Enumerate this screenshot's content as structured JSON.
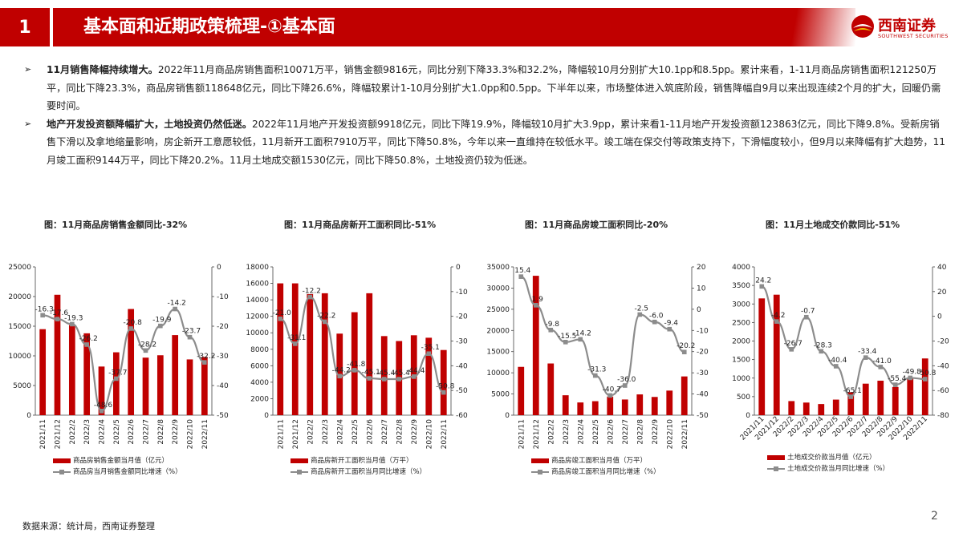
{
  "header": {
    "number": "1",
    "title": "基本面和近期政策梳理-①基本面",
    "logo_cn": "西南证券",
    "logo_en": "SOUTHWEST SECURITIES"
  },
  "bullets": [
    {
      "mark": "➢",
      "lead": "11月销售降幅持续增大。",
      "text": "2022年11月商品房销售面积10071万平，销售金额9816元，同比分别下降33.3%和32.2%，降幅较10月分别扩大10.1pp和8.5pp。累计来看，1-11月商品房销售面积121250万平，同比下降23.3%，商品房销售额118648亿元，同比下降26.6%，降幅较累计1-10月分别扩大1.0pp和0.5pp。下半年以来，市场整体进入筑底阶段，销售降幅自9月以来出现连续2个月的扩大，回暖仍需要时间。"
    },
    {
      "mark": "➢",
      "lead": "地产开发投资额降幅扩大，土地投资仍然低迷。",
      "text": "2022年11月地产开发投资额9918亿元，同比下降19.9%，降幅较10月扩大3.9pp，累计来看1-11月地产开发投资额123863亿元，同比下降9.8%。受新房销售下滑以及拿地缩量影响，房企新开工意愿较低，11月新开工面积7910万平，同比下降50.8%，今年以来一直维持在较低水平。竣工端在保交付等政策支持下，下滑幅度较小，但9月以来降幅有扩大趋势，11月竣工面积9144万平，同比下降20.2%。11月土地成交额1530亿元，同比下降50.8%，土地投资仍较为低迷。"
    }
  ],
  "categories": [
    "2021/11",
    "2021/12",
    "2022/2",
    "2022/3",
    "2022/4",
    "2022/5",
    "2022/6",
    "2022/7",
    "2022/8",
    "2022/9",
    "2022/10",
    "2022/11"
  ],
  "chart_data": [
    {
      "type": "bar",
      "title": "图：11月商品房销售金额同比-32%",
      "bar_color": "#c00000",
      "line_color": "#8c8c8c",
      "left_axis": [
        0,
        25000
      ],
      "left_ticks": [
        "0",
        "5000",
        "10000",
        "15000",
        "20000",
        "25000"
      ],
      "right_axis": [
        -50,
        0
      ],
      "right_ticks": [
        "0",
        "-10",
        "-20",
        "-30",
        "-40",
        "-50"
      ],
      "bars": {
        "name": "商品房销售金额当月值（亿元）",
        "values": [
          14500,
          20300,
          15200,
          13800,
          8200,
          10600,
          17900,
          9700,
          10100,
          13500,
          9400,
          9816
        ]
      },
      "line": {
        "name": "商品房当月销售金额同比增速（%）",
        "values": [
          -16.3,
          -17.6,
          -19.3,
          -26.2,
          -48.6,
          -37.7,
          -20.8,
          -28.2,
          -19.9,
          -14.2,
          -23.7,
          -32.2
        ]
      },
      "labels": [
        "-16.3",
        "-17.6",
        "-19.3",
        "-26.2",
        "-48.6",
        "-37.7",
        "-20.8",
        "-28.2",
        "-19.9",
        "-14.2",
        "-23.7",
        "-32.2"
      ]
    },
    {
      "type": "bar",
      "title": "图：11月商品房新开工面积同比-51%",
      "bar_color": "#c00000",
      "line_color": "#8c8c8c",
      "left_axis": [
        0,
        18000
      ],
      "left_ticks": [
        "0",
        "2000",
        "4000",
        "6000",
        "8000",
        "10000",
        "12000",
        "14000",
        "16000",
        "18000"
      ],
      "right_axis": [
        -60,
        0
      ],
      "right_ticks": [
        "0",
        "-10",
        "-20",
        "-30",
        "-40",
        "-50",
        "-60"
      ],
      "bars": {
        "name": "商品房新开工面积当月值（万平）",
        "values": [
          16000,
          16000,
          14700,
          14800,
          9900,
          12500,
          14800,
          9600,
          9000,
          9700,
          9400,
          7910
        ]
      },
      "line": {
        "name": "商品房新开工面积当月同比增速（%）",
        "values": [
          -21.0,
          -31.1,
          -12.2,
          -22.2,
          -44.2,
          -41.8,
          -45.1,
          -45.4,
          -45.4,
          -44.4,
          -35.1,
          -50.8
        ]
      },
      "labels": [
        "-21.0",
        "-31.1",
        "-12.2",
        "-22.2",
        "-44.2",
        "-41.8",
        "-45.1",
        "-45.4",
        "-45.4",
        "-44.4",
        "-35.1",
        "-50.8"
      ]
    },
    {
      "type": "bar",
      "title": "图：11月商品房竣工面积同比-20%",
      "bar_color": "#c00000",
      "line_color": "#8c8c8c",
      "left_axis": [
        0,
        35000
      ],
      "left_ticks": [
        "0",
        "5000",
        "10000",
        "15000",
        "20000",
        "25000",
        "30000",
        "35000"
      ],
      "right_axis": [
        -50,
        20
      ],
      "right_ticks": [
        "20",
        "10",
        "0",
        "-10",
        "-20",
        "-30",
        "-40",
        "-50"
      ],
      "bars": {
        "name": "商品房竣工面积当月值（万平）",
        "values": [
          11400,
          32900,
          12200,
          4700,
          3000,
          3300,
          4400,
          3700,
          4900,
          4300,
          5800,
          9144
        ]
      },
      "line": {
        "name": "商品房竣工面积当月同比增速（%）",
        "values": [
          15.4,
          1.9,
          -9.8,
          -15.5,
          -14.2,
          -31.3,
          -40.7,
          -36.0,
          -2.5,
          -6.0,
          -9.4,
          -20.2
        ]
      },
      "labels": [
        "15.4",
        "1.9",
        "-9.8",
        "-15.5",
        "-14.2",
        "-31.3",
        "-40.7",
        "-36.0",
        "-2.5",
        "-6.0",
        "-9.4",
        "-20.2"
      ]
    },
    {
      "type": "bar",
      "title": "图：11月土地成交价款同比-51%",
      "bar_color": "#c00000",
      "line_color": "#8c8c8c",
      "left_axis": [
        0,
        4000
      ],
      "left_ticks": [
        "0",
        "500",
        "1000",
        "1500",
        "2000",
        "2500",
        "3000",
        "3500",
        "4000"
      ],
      "right_axis": [
        -80,
        40
      ],
      "right_ticks": [
        "40",
        "20",
        "0",
        "-20",
        "-40",
        "-60",
        "-80"
      ],
      "bars": {
        "name": "土地成交价款当月值（亿元）",
        "values": [
          3150,
          3250,
          380,
          340,
          300,
          420,
          620,
          850,
          930,
          760,
          1000,
          1530
        ]
      },
      "line": {
        "name": "土地成交价款当月同比增速（%）",
        "values": [
          24.2,
          -4.2,
          -26.7,
          -0.7,
          -28.3,
          -40.4,
          -65.1,
          -33.4,
          -41.0,
          -55.4,
          -49.8,
          -50.8
        ]
      },
      "labels": [
        "24.2",
        "-4.2",
        "-26.7",
        "-0.7",
        "-28.3",
        "-40.4",
        "-65.1",
        "-33.4",
        "-41.0",
        "-55.4",
        "-49.8",
        "-50.8"
      ]
    }
  ],
  "source": "数据来源：统计局，西南证券整理",
  "page_number": "2"
}
